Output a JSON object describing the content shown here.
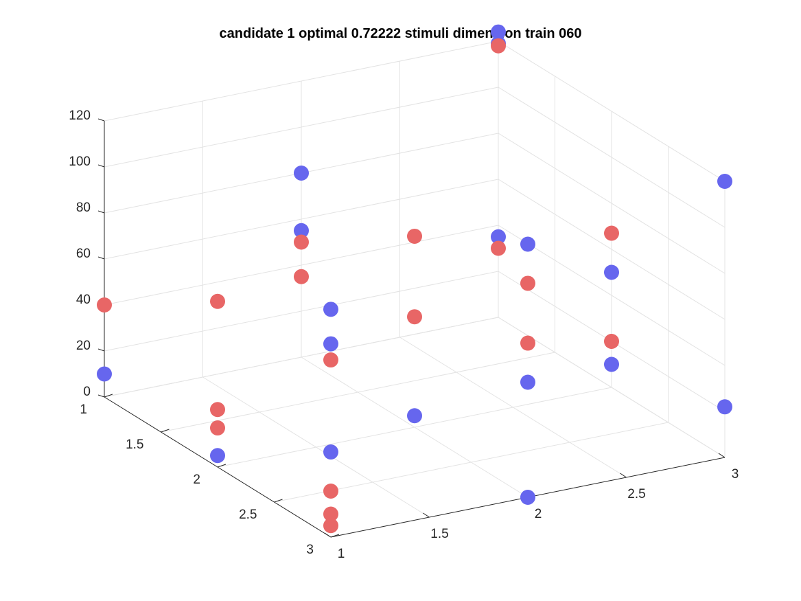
{
  "chart_data": {
    "type": "scatter",
    "subtype": "3d",
    "title": "candidate 1 optimal 0.72222 stimuli dimension train 060",
    "xlabel": "",
    "ylabel": "",
    "zlabel": "",
    "xlim": [
      1,
      3
    ],
    "ylim": [
      1,
      3
    ],
    "zlim": [
      0,
      120
    ],
    "x_ticks": [
      "1",
      "1.5",
      "2",
      "2.5",
      "3"
    ],
    "y_ticks": [
      "1",
      "1.5",
      "2",
      "2.5",
      "3"
    ],
    "z_ticks": [
      "0",
      "20",
      "40",
      "60",
      "80",
      "100",
      "120"
    ],
    "grid": true,
    "series": [
      {
        "color": "#6666ee",
        "points": [
          {
            "x": 1,
            "y": 1,
            "z": 10
          },
          {
            "x": 1,
            "y": 2,
            "z": 5
          },
          {
            "x": 1,
            "y": 3,
            "z": 37
          },
          {
            "x": 1,
            "y": 3,
            "z": 84
          },
          {
            "x": 1,
            "y": 3,
            "z": 99
          },
          {
            "x": 2,
            "y": 2,
            "z": 5
          },
          {
            "x": 2,
            "y": 1,
            "z": 55
          },
          {
            "x": 2,
            "y": 1,
            "z": 80
          },
          {
            "x": 3,
            "y": 1,
            "z": 35
          },
          {
            "x": 2,
            "y": 3,
            "z": 0
          },
          {
            "x": 2,
            "y": 3,
            "z": 50
          },
          {
            "x": 2,
            "y": 3,
            "z": 110
          },
          {
            "x": 3,
            "y": 3,
            "z": 22
          },
          {
            "x": 3,
            "y": 1,
            "z": 119
          },
          {
            "x": 3,
            "y": 1,
            "z": 124
          },
          {
            "x": 3,
            "y": 2,
            "z": 10
          },
          {
            "x": 3,
            "y": 2,
            "z": 50
          },
          {
            "x": 3,
            "y": 3,
            "z": 120
          }
        ]
      },
      {
        "color": "#e86666",
        "points": [
          {
            "x": 1,
            "y": 1,
            "z": 40
          },
          {
            "x": 1,
            "y": 2,
            "z": 17
          },
          {
            "x": 1,
            "y": 2,
            "z": 25
          },
          {
            "x": 1,
            "y": 3,
            "z": 5
          },
          {
            "x": 1,
            "y": 3,
            "z": 10
          },
          {
            "x": 1,
            "y": 3,
            "z": 20
          },
          {
            "x": 1,
            "y": 2,
            "z": 72
          },
          {
            "x": 2,
            "y": 1,
            "z": 35
          },
          {
            "x": 2,
            "y": 1,
            "z": 50
          },
          {
            "x": 1,
            "y": 3,
            "z": 77
          },
          {
            "x": 2,
            "y": 2,
            "z": 48
          },
          {
            "x": 2,
            "y": 2,
            "z": 83
          },
          {
            "x": 3,
            "y": 1,
            "z": 30
          },
          {
            "x": 2,
            "y": 3,
            "z": 67
          },
          {
            "x": 2,
            "y": 3,
            "z": 93
          },
          {
            "x": 3,
            "y": 2,
            "z": 20
          },
          {
            "x": 3,
            "y": 1,
            "z": 118
          },
          {
            "x": 3,
            "y": 2,
            "z": 67
          }
        ]
      }
    ]
  }
}
